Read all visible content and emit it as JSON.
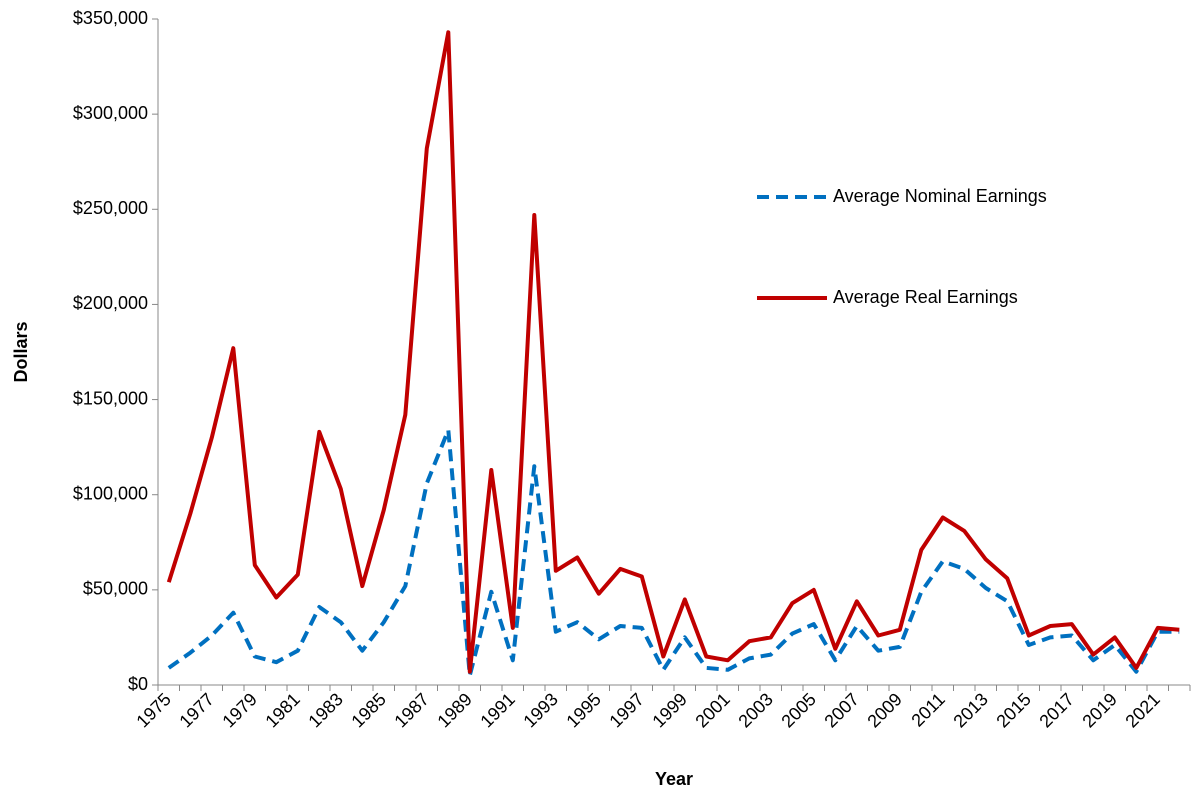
{
  "chart_data": {
    "type": "line",
    "x_label": "Year",
    "y_label": "Dollars",
    "categories": [
      "1975",
      null,
      "1977",
      null,
      "1979",
      null,
      "1981",
      null,
      "1983",
      null,
      "1985",
      null,
      "1987",
      null,
      "1989",
      null,
      "1991",
      null,
      "1993",
      null,
      "1995",
      null,
      "1997",
      null,
      "1999",
      null,
      "2001",
      null,
      "2003",
      null,
      "2005",
      null,
      "2007",
      null,
      "2009",
      null,
      "2011",
      null,
      "2013",
      null,
      "2015",
      null,
      "2017",
      null,
      "2019",
      null,
      "2021",
      null
    ],
    "series": [
      {
        "name": "Average Nominal Earnings",
        "color": "#0070c0",
        "dashed": true,
        "values": [
          9000,
          17000,
          26000,
          38000,
          15000,
          12000,
          18000,
          41000,
          33000,
          18000,
          33000,
          52000,
          106000,
          134000,
          5000,
          49000,
          13000,
          115000,
          28000,
          33000,
          24000,
          31000,
          30000,
          8000,
          25000,
          9000,
          8000,
          14000,
          16000,
          27000,
          32000,
          13000,
          31000,
          18000,
          20000,
          49000,
          65000,
          61000,
          51000,
          44000,
          21000,
          25000,
          26000,
          13000,
          21000,
          7000,
          28000,
          28000
        ]
      },
      {
        "name": "Average Real Earnings",
        "color": "#c00000",
        "dashed": false,
        "values": [
          54000,
          90000,
          130000,
          177000,
          63000,
          46000,
          58000,
          133000,
          103000,
          52000,
          92000,
          142000,
          282000,
          343000,
          7000,
          113000,
          30000,
          247000,
          60000,
          67000,
          48000,
          61000,
          57000,
          15000,
          45000,
          15000,
          13000,
          23000,
          25000,
          43000,
          50000,
          19000,
          44000,
          26000,
          29000,
          71000,
          88000,
          81000,
          66000,
          56000,
          26000,
          31000,
          32000,
          16000,
          25000,
          9000,
          30000,
          29000
        ]
      }
    ],
    "ylim": [
      0,
      350000
    ],
    "yticks": [
      {
        "value": 0,
        "label": "$0"
      },
      {
        "value": 50000,
        "label": "$50,000"
      },
      {
        "value": 100000,
        "label": "$100,000"
      },
      {
        "value": 150000,
        "label": "$150,000"
      },
      {
        "value": 200000,
        "label": "$200,000"
      },
      {
        "value": 250000,
        "label": "$250,000"
      },
      {
        "value": 300000,
        "label": "$300,000"
      },
      {
        "value": 350000,
        "label": "$350,000"
      }
    ],
    "grid": false,
    "legend": "upper right"
  }
}
